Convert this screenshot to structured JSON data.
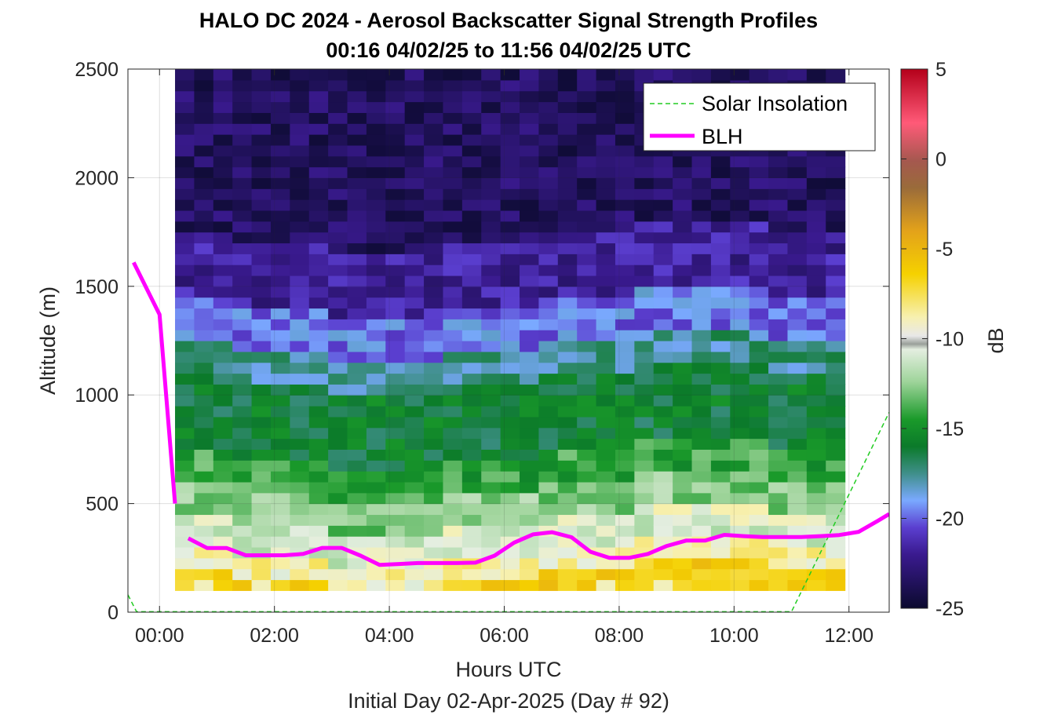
{
  "chart_data": {
    "type": "heatmap",
    "title": "HALO DC 2024 - Aerosol Backscatter Signal Strength Profiles",
    "subtitle": "00:16 04/02/25 to 11:56 04/02/25  UTC",
    "xlabel": "Hours UTC",
    "xlabel2": "Initial Day 02-Apr-2025 (Day # 92)",
    "ylabel": "Altitude (m)",
    "xlim": [
      -0.55,
      12.7
    ],
    "ylim": [
      0,
      2500
    ],
    "x_ticks": [
      0,
      2,
      4,
      6,
      8,
      10,
      12
    ],
    "x_tick_labels": [
      "00:00",
      "02:00",
      "04:00",
      "06:00",
      "08:00",
      "10:00",
      "12:00"
    ],
    "y_ticks": [
      0,
      500,
      1000,
      1500,
      2000,
      2500
    ],
    "y_tick_labels": [
      "0",
      "500",
      "1000",
      "1500",
      "2000",
      "2500"
    ],
    "grid": true,
    "legend_position": "top-right",
    "colorbar": {
      "label": "dB",
      "range": [
        -25,
        5
      ],
      "ticks": [
        5,
        0,
        -5,
        -10,
        -15,
        -20,
        -25
      ],
      "tick_labels": [
        "5",
        "0",
        "-5",
        "-10",
        "-15",
        "-20",
        "-25"
      ]
    },
    "heatmap": {
      "time_range_hours": [
        0.27,
        11.93
      ],
      "altitude_range_m": [
        100,
        2500
      ],
      "cell_height_m": 50,
      "approx_profile_dB": [
        {
          "alt_range_m": [
            100,
            150
          ],
          "dB": -7
        },
        {
          "alt_range_m": [
            150,
            400
          ],
          "dB": -11
        },
        {
          "alt_range_m": [
            400,
            700
          ],
          "dB": -13
        },
        {
          "alt_range_m": [
            700,
            1100
          ],
          "dB": -16
        },
        {
          "alt_range_m": [
            1100,
            1400
          ],
          "dB": -19
        },
        {
          "alt_range_m": [
            1400,
            2500
          ],
          "dB": -23
        }
      ]
    },
    "series": [
      {
        "name": "Solar Insolation",
        "style": "dashed",
        "color": "#00cc00",
        "x": [
          -0.55,
          -0.4,
          11.0,
          12.7
        ],
        "y": [
          80,
          2,
          2,
          920
        ]
      },
      {
        "name": "BLH",
        "style": "solid",
        "color": "#ff00ff",
        "segments": [
          {
            "x": [
              -0.45,
              0.0,
              0.27
            ],
            "y": [
              1610,
              1370,
              500
            ]
          },
          {
            "x": [
              0.5,
              0.83,
              1.17,
              1.5,
              1.83,
              2.17,
              2.5,
              2.83,
              3.17,
              3.5,
              3.83,
              4.17,
              4.5,
              4.83,
              5.17,
              5.5,
              5.83,
              6.17,
              6.5,
              6.83,
              7.17,
              7.5,
              7.83,
              8.17,
              8.5,
              8.83,
              9.17,
              9.5,
              9.83,
              10.17,
              10.5,
              10.83,
              11.17,
              11.5,
              11.83,
              12.17,
              12.5,
              12.7
            ],
            "y": [
              340,
              295,
              295,
              262,
              262,
              262,
              268,
              296,
              296,
              260,
              218,
              222,
              226,
              226,
              226,
              228,
              260,
              320,
              358,
              368,
              345,
              278,
              250,
              250,
              268,
              305,
              330,
              330,
              356,
              350,
              346,
              346,
              346,
              350,
              355,
              370,
              420,
              452
            ]
          }
        ]
      }
    ]
  }
}
